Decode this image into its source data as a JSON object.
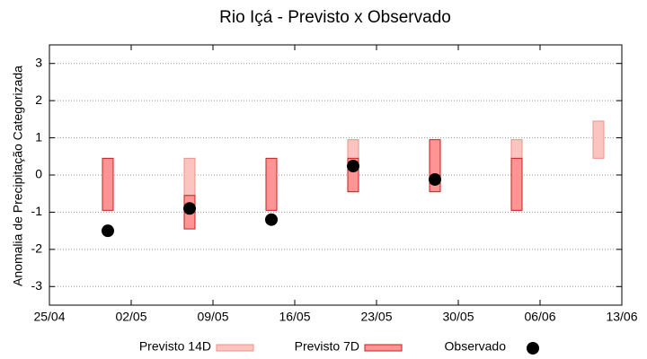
{
  "chart_data": {
    "type": "range_bar",
    "title": "Rio Içá - Previsto x Observado",
    "y_label": "Anomalia de Precipitação Categorizada",
    "x": [
      "30/04",
      "07/05",
      "14/05",
      "21/05",
      "28/05",
      "04/06",
      "11/06"
    ],
    "xlim": [
      "25/04",
      "13/06"
    ],
    "xticks": [
      "25/04",
      "02/05",
      "09/05",
      "16/05",
      "23/05",
      "30/05",
      "06/06",
      "13/06"
    ],
    "ylim": [
      -3.5,
      3.5
    ],
    "yticks": [
      -3,
      -2,
      -1,
      0,
      1,
      2,
      3
    ],
    "grid": true,
    "legend": "bottom",
    "series": [
      {
        "name": "Previsto 14D",
        "type": "range_bar",
        "color": "#fcc4c0",
        "edge": "#f0908a",
        "values": [
          null,
          [
            -0.55,
            0.45
          ],
          null,
          [
            -0.45,
            0.95
          ],
          null,
          [
            -0.95,
            0.95
          ],
          [
            0.45,
            1.45
          ]
        ]
      },
      {
        "name": "Previsto 7D",
        "type": "range_bar",
        "color": "#ff9494",
        "edge": "#c81e1e",
        "values": [
          [
            -0.95,
            0.45
          ],
          [
            -1.45,
            -0.55
          ],
          [
            -0.95,
            0.45
          ],
          [
            -0.45,
            0.45
          ],
          [
            -0.45,
            0.95
          ],
          [
            -0.95,
            0.45
          ],
          null
        ]
      },
      {
        "name": "Observado",
        "type": "scatter",
        "color": "#000000",
        "values": [
          -1.5,
          -0.9,
          -1.2,
          0.24,
          -0.12,
          null,
          null
        ]
      }
    ]
  }
}
